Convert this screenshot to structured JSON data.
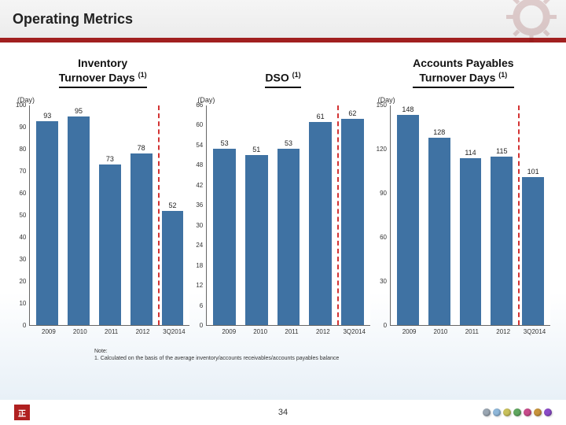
{
  "header": {
    "title": "Operating Metrics"
  },
  "charts": [
    {
      "title_line1": "Inventory",
      "title_line2": "Turnover Days",
      "title_sup": "(1)",
      "axis_label": "(Day)",
      "type": "bar",
      "categories": [
        "2009",
        "2010",
        "2011",
        "2012",
        "3Q2014"
      ],
      "values": [
        93,
        95,
        73,
        78,
        52
      ],
      "bar_color": "#3f72a3",
      "ylim": [
        0,
        100
      ],
      "ytick_step": 10,
      "background_color": "#ffffff",
      "axis_color": "#666666",
      "value_label_color": "#222222",
      "tick_fontsize": 8,
      "value_fontsize": 9,
      "dashed_line_color": "#d33333",
      "dashed_line_after_index": 3
    },
    {
      "title_line1": "",
      "title_line2": "DSO",
      "title_sup": "(1)",
      "axis_label": "(Day)",
      "type": "bar",
      "categories": [
        "2009",
        "2010",
        "2011",
        "2012",
        "3Q2014"
      ],
      "values": [
        53,
        51,
        53,
        61,
        62
      ],
      "bar_color": "#3f72a3",
      "ylim": [
        0,
        66
      ],
      "ytick_step": 6,
      "background_color": "#ffffff",
      "axis_color": "#666666",
      "value_label_color": "#222222",
      "tick_fontsize": 8,
      "value_fontsize": 9,
      "dashed_line_color": "#d33333",
      "dashed_line_after_index": 3
    },
    {
      "title_line1": "Accounts Payables",
      "title_line2": "Turnover Days",
      "title_sup": "(1)",
      "axis_label": "(Day)",
      "type": "bar",
      "categories": [
        "2009",
        "2010",
        "2011",
        "2012",
        "3Q2014"
      ],
      "values": [
        148,
        128,
        114,
        115,
        101
      ],
      "bar_color": "#3f72a3",
      "ylim": [
        0,
        150
      ],
      "ytick_step": 30,
      "background_color": "#ffffff",
      "axis_color": "#666666",
      "value_label_color": "#222222",
      "tick_fontsize": 8,
      "value_fontsize": 9,
      "dashed_line_color": "#d33333",
      "dashed_line_after_index": 3
    }
  ],
  "note": {
    "heading": "Note:",
    "line1": "1. Calculated on the basis of the average inventory/accounts receivables/accounts payables balance"
  },
  "footer": {
    "page_number": "34",
    "logo_text": "正",
    "gem_colors": [
      "#9aa6b2",
      "#8fb7d9",
      "#c8c05a",
      "#5fa65f",
      "#c74a8a",
      "#c7933a",
      "#8a4ac7"
    ]
  },
  "colors": {
    "header_accent": "#a12020",
    "text": "#222222"
  }
}
